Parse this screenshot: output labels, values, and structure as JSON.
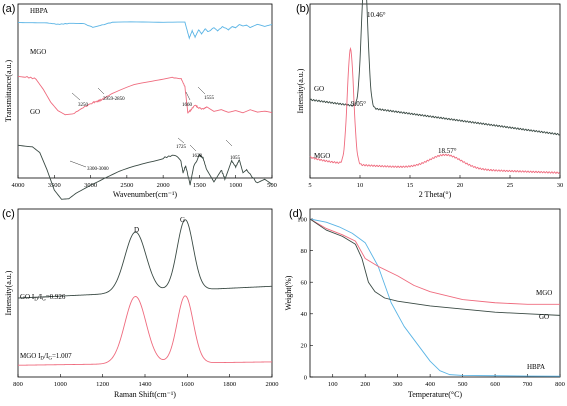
{
  "figure": {
    "colors": {
      "blue": "#5ab4e5",
      "red": "#ef6b7e",
      "dark": "#3a4a44",
      "axis": "#000000"
    }
  },
  "chart_data": [
    {
      "id": "a",
      "panel_label": "(a)",
      "type": "line",
      "xlabel": "Wavenumber(cm⁻¹)",
      "ylabel": "Transmittance(a.u.)",
      "xlim": [
        4000,
        500
      ],
      "x_ticks": [
        4000,
        3500,
        3000,
        2500,
        2000,
        1500,
        1000,
        500
      ],
      "series": [
        {
          "name": "HBPA",
          "color": "#5ab4e5",
          "offset": 0.9,
          "scale": 0.12,
          "points": [
            [
              4000,
              0.95
            ],
            [
              3800,
              0.95
            ],
            [
              3600,
              0.93
            ],
            [
              3450,
              0.86
            ],
            [
              3300,
              0.9
            ],
            [
              3100,
              0.9
            ],
            [
              2970,
              0.72
            ],
            [
              2870,
              0.8
            ],
            [
              2700,
              0.96
            ],
            [
              2200,
              0.97
            ],
            [
              1800,
              0.97
            ],
            [
              1700,
              0.96
            ],
            [
              1640,
              0.2
            ],
            [
              1600,
              0.55
            ],
            [
              1560,
              0.25
            ],
            [
              1510,
              0.6
            ],
            [
              1470,
              0.4
            ],
            [
              1420,
              0.65
            ],
            [
              1380,
              0.5
            ],
            [
              1300,
              0.7
            ],
            [
              1250,
              0.55
            ],
            [
              1180,
              0.75
            ],
            [
              1100,
              0.6
            ],
            [
              1050,
              0.75
            ],
            [
              1000,
              0.7
            ],
            [
              950,
              0.85
            ],
            [
              900,
              0.78
            ],
            [
              850,
              0.82
            ],
            [
              800,
              0.7
            ],
            [
              700,
              0.85
            ],
            [
              600,
              0.75
            ],
            [
              500,
              0.85
            ]
          ]
        },
        {
          "name": "MGO",
          "color": "#ef6b7e",
          "offset": 0.6,
          "scale": 0.3,
          "points": [
            [
              4000,
              0.95
            ],
            [
              3900,
              0.94
            ],
            [
              3750,
              0.9
            ],
            [
              3650,
              0.7
            ],
            [
              3550,
              0.45
            ],
            [
              3450,
              0.28
            ],
            [
              3350,
              0.2
            ],
            [
              3250,
              0.22
            ],
            [
              3100,
              0.35
            ],
            [
              2960,
              0.45
            ],
            [
              2900,
              0.47
            ],
            [
              2850,
              0.5
            ],
            [
              2700,
              0.62
            ],
            [
              2400,
              0.78
            ],
            [
              2100,
              0.88
            ],
            [
              1900,
              0.93
            ],
            [
              1750,
              0.9
            ],
            [
              1700,
              0.75
            ],
            [
              1660,
              0.25
            ],
            [
              1620,
              0.3
            ],
            [
              1560,
              0.4
            ],
            [
              1520,
              0.35
            ],
            [
              1450,
              0.32
            ],
            [
              1400,
              0.36
            ],
            [
              1300,
              0.28
            ],
            [
              1200,
              0.32
            ],
            [
              1100,
              0.27
            ],
            [
              1000,
              0.3
            ],
            [
              900,
              0.25
            ],
            [
              800,
              0.3
            ],
            [
              700,
              0.25
            ],
            [
              600,
              0.27
            ],
            [
              500,
              0.25
            ]
          ]
        },
        {
          "name": "GO",
          "color": "#3a4a44",
          "offset": 0.2,
          "scale": 0.34,
          "points": [
            [
              4000,
              0.97
            ],
            [
              3800,
              0.95
            ],
            [
              3700,
              0.85
            ],
            [
              3600,
              0.55
            ],
            [
              3500,
              0.2
            ],
            [
              3400,
              0.04
            ],
            [
              3300,
              0.05
            ],
            [
              3200,
              0.15
            ],
            [
              3000,
              0.3
            ],
            [
              2800,
              0.42
            ],
            [
              2600,
              0.52
            ],
            [
              2400,
              0.6
            ],
            [
              2200,
              0.68
            ],
            [
              2000,
              0.75
            ],
            [
              1850,
              0.8
            ],
            [
              1760,
              0.72
            ],
            [
              1725,
              0.5
            ],
            [
              1690,
              0.62
            ],
            [
              1628,
              0.3
            ],
            [
              1580,
              0.6
            ],
            [
              1500,
              0.8
            ],
            [
              1450,
              0.75
            ],
            [
              1400,
              0.55
            ],
            [
              1300,
              0.35
            ],
            [
              1200,
              0.55
            ],
            [
              1150,
              0.4
            ],
            [
              1055,
              0.7
            ],
            [
              1000,
              0.6
            ],
            [
              950,
              0.72
            ],
            [
              900,
              0.5
            ],
            [
              850,
              0.55
            ],
            [
              700,
              0.32
            ],
            [
              600,
              0.38
            ],
            [
              500,
              0.3
            ]
          ]
        }
      ],
      "annotations": [
        "3250",
        "2959-2850",
        "1660",
        "1555",
        "3300-3000",
        "1725",
        "1628",
        "1055"
      ]
    },
    {
      "id": "b",
      "panel_label": "(b)",
      "type": "line",
      "xlabel": "2 Theta(°)",
      "ylabel": "Intensity(a.u.)",
      "xlim": [
        5,
        30
      ],
      "x_ticks": [
        5,
        10,
        15,
        20,
        25,
        30
      ],
      "series": [
        {
          "name": "GO",
          "color": "#3a4a44",
          "peaks": [
            [
              10.46,
              0.76,
              0.32
            ]
          ],
          "baseline": 0.45,
          "slope": -0.008
        },
        {
          "name": "MGO",
          "color": "#ef6b7e",
          "peaks": [
            [
              9.05,
              0.66,
              0.32
            ],
            [
              18.57,
              0.08,
              1.6
            ]
          ],
          "baseline": 0.08,
          "slope": -0.002
        }
      ],
      "peak_labels": [
        "10.46°",
        "9.05°",
        "18.57°"
      ]
    },
    {
      "id": "c",
      "panel_label": "(c)",
      "type": "line",
      "xlabel": "Raman Shift(cm⁻¹)",
      "ylabel": "Intensity(a.u.)",
      "xlim": [
        800,
        2000
      ],
      "x_ticks": [
        800,
        1000,
        1200,
        1400,
        1600,
        1800,
        2000
      ],
      "band_labels": [
        "D",
        "G"
      ],
      "series": [
        {
          "name": "GO",
          "color": "#3a4a44",
          "baseline": 0.47,
          "rise": 0.07,
          "peaks": [
            [
              1355,
              0.36,
              50
            ],
            [
              1590,
              0.42,
              38
            ]
          ]
        },
        {
          "name": "MGO",
          "color": "#ef6b7e",
          "baseline": 0.07,
          "rise": 0.02,
          "peaks": [
            [
              1355,
              0.4,
              50
            ],
            [
              1590,
              0.4,
              38
            ]
          ]
        }
      ],
      "ratio_labels": [
        {
          "prefix": "GO I",
          "sub1": "D",
          "mid": "/I",
          "sub2": "G",
          "suffix": "=0.926"
        },
        {
          "prefix": "MGO I",
          "sub1": "D",
          "mid": "/I",
          "sub2": "G",
          "suffix": "=1.007"
        }
      ]
    },
    {
      "id": "d",
      "panel_label": "(d)",
      "type": "line",
      "xlabel": "Temperature(°C)",
      "ylabel": "Weight(%)",
      "xlim": [
        30,
        800
      ],
      "ylim": [
        0,
        100
      ],
      "x_ticks": [
        100,
        200,
        300,
        400,
        500,
        600,
        700,
        800
      ],
      "y_ticks": [
        0,
        20,
        40,
        60,
        80,
        100
      ],
      "series": [
        {
          "name": "HBPA",
          "color": "#5ab4e5",
          "points": [
            [
              30,
              100
            ],
            [
              80,
              98
            ],
            [
              120,
              95
            ],
            [
              160,
              91
            ],
            [
              200,
              85
            ],
            [
              240,
              70
            ],
            [
              280,
              47
            ],
            [
              320,
              32
            ],
            [
              360,
              21
            ],
            [
              400,
              10
            ],
            [
              430,
              4
            ],
            [
              460,
              1.5
            ],
            [
              500,
              1
            ],
            [
              600,
              0.8
            ],
            [
              700,
              0.6
            ],
            [
              800,
              0.5
            ]
          ]
        },
        {
          "name": "MGO",
          "color": "#ef6b7e",
          "points": [
            [
              30,
              100
            ],
            [
              80,
              94
            ],
            [
              130,
              90
            ],
            [
              170,
              86
            ],
            [
              200,
              75
            ],
            [
              240,
              70
            ],
            [
              300,
              64
            ],
            [
              350,
              58
            ],
            [
              400,
              54
            ],
            [
              500,
              49
            ],
            [
              600,
              47
            ],
            [
              700,
              46
            ],
            [
              800,
              46
            ]
          ]
        },
        {
          "name": "GO",
          "color": "#3a4a44",
          "points": [
            [
              30,
              100
            ],
            [
              80,
              93
            ],
            [
              130,
              89
            ],
            [
              170,
              84
            ],
            [
              190,
              75
            ],
            [
              210,
              60
            ],
            [
              230,
              54
            ],
            [
              260,
              50
            ],
            [
              300,
              48
            ],
            [
              400,
              45
            ],
            [
              500,
              43
            ],
            [
              600,
              41
            ],
            [
              700,
              40
            ],
            [
              800,
              39
            ]
          ]
        }
      ]
    }
  ]
}
